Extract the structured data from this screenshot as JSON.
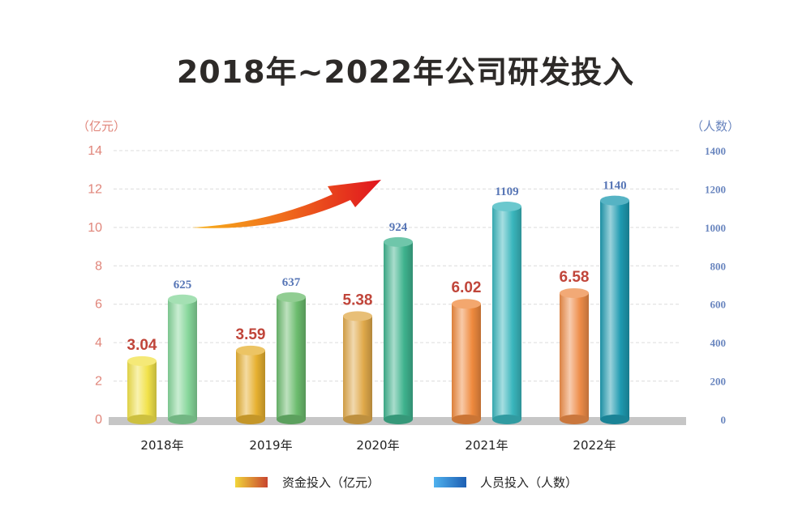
{
  "chart_data": {
    "type": "bar",
    "title": "2018年~2022年公司研发投入",
    "categories": [
      "2018年",
      "2019年",
      "2020年",
      "2021年",
      "2022年"
    ],
    "series": [
      {
        "name": "资金投入（亿元）",
        "axis": "left",
        "values": [
          3.04,
          3.59,
          5.38,
          6.02,
          6.58
        ],
        "labels": [
          "3.04",
          "3.59",
          "5.38",
          "6.02",
          "6.58"
        ]
      },
      {
        "name": "人员投入（人数）",
        "axis": "right",
        "values": [
          625,
          637,
          924,
          1109,
          1140
        ],
        "labels": [
          "625",
          "637",
          "924",
          "1109",
          "1140"
        ]
      }
    ],
    "y_left": {
      "unit": "（亿元）",
      "range": [
        0,
        14
      ],
      "ticks": [
        "0",
        "2",
        "4",
        "6",
        "8",
        "10",
        "12",
        "14"
      ]
    },
    "y_right": {
      "unit": "（人数）",
      "range": [
        0,
        1400
      ],
      "ticks": [
        "0",
        "200",
        "400",
        "600",
        "800",
        "1000",
        "1200",
        "1400"
      ]
    },
    "legend_position": "bottom",
    "grid": true,
    "colors": {
      "investment": [
        "#f1e24a",
        "#e6b030",
        "#e0a94a",
        "#ef8a3e",
        "#ee8c48"
      ],
      "personnel": [
        "#86d69a",
        "#6cbc6e",
        "#3fb38e",
        "#3ab6bd",
        "#1e9ab0"
      ],
      "arrow": "#e0141e",
      "left_axis": "#e0857a",
      "right_axis": "#6a86bf"
    }
  }
}
